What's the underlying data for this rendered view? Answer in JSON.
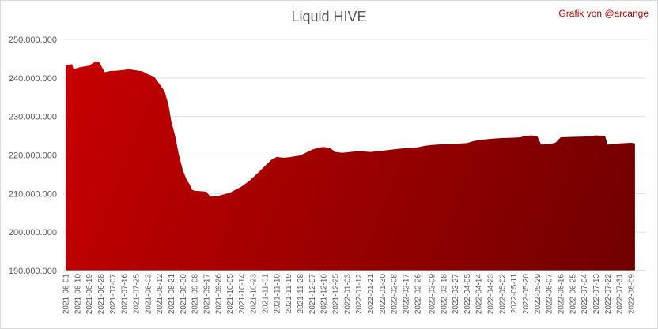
{
  "chart_data": {
    "type": "area",
    "title": "Liquid HIVE",
    "credit": "Grafik von @arcange",
    "xlabel": "",
    "ylabel": "",
    "ylim": [
      190000000,
      250000000
    ],
    "yticks": [
      {
        "value": 190000000,
        "label": "190.000.000"
      },
      {
        "value": 200000000,
        "label": "200.000.000"
      },
      {
        "value": 210000000,
        "label": "210.000.000"
      },
      {
        "value": 220000000,
        "label": "220.000.000"
      },
      {
        "value": 230000000,
        "label": "230.000.000"
      },
      {
        "value": 240000000,
        "label": "240.000.000"
      },
      {
        "value": 250000000,
        "label": "250.000.000"
      }
    ],
    "xtick_labels": [
      "2021-06-01",
      "2021-06-10",
      "2021-06-19",
      "2021-06-28",
      "2021-07-07",
      "2021-07-16",
      "2021-07-25",
      "2021-08-03",
      "2021-08-12",
      "2021-08-21",
      "2021-08-30",
      "2021-09-08",
      "2021-09-17",
      "2021-09-26",
      "2021-10-05",
      "2021-10-14",
      "2021-10-23",
      "2021-11-01",
      "2021-11-10",
      "2021-11-19",
      "2021-11-28",
      "2021-12-07",
      "2021-12-16",
      "2021-12-25",
      "2022-01-03",
      "2022-01-12",
      "2022-01-21",
      "2022-01-30",
      "2022-02-08",
      "2022-02-17",
      "2022-02-26",
      "2022-03-09",
      "2022-03-18",
      "2022-03-27",
      "2022-04-05",
      "2022-04-14",
      "2022-04-23",
      "2022-05-02",
      "2022-05-11",
      "2022-05-20",
      "2022-05-29",
      "2022-06-07",
      "2022-06-16",
      "2022-06-25",
      "2022-07-04",
      "2022-07-13",
      "2022-07-22",
      "2022-07-31",
      "2022-08-09"
    ],
    "series": [
      {
        "color": "#c00000",
        "x": [
          "2021-06-01",
          "2021-06-06",
          "2021-06-07",
          "2021-06-12",
          "2021-06-19",
          "2021-06-24",
          "2021-06-27",
          "2021-07-01",
          "2021-07-05",
          "2021-07-10",
          "2021-07-16",
          "2021-07-19",
          "2021-07-25",
          "2021-07-30",
          "2021-08-03",
          "2021-08-08",
          "2021-08-12",
          "2021-08-16",
          "2021-08-19",
          "2021-08-21",
          "2021-08-24",
          "2021-08-27",
          "2021-08-30",
          "2021-09-02",
          "2021-09-04",
          "2021-09-06",
          "2021-09-08",
          "2021-09-13",
          "2021-09-17",
          "2021-09-20",
          "2021-09-26",
          "2021-10-05",
          "2021-10-14",
          "2021-10-20",
          "2021-10-27",
          "2021-11-01",
          "2021-11-06",
          "2021-11-10",
          "2021-11-15",
          "2021-11-19",
          "2021-11-28",
          "2021-12-03",
          "2021-12-07",
          "2021-12-12",
          "2021-12-16",
          "2021-12-21",
          "2021-12-25",
          "2021-12-30",
          "2022-01-03",
          "2022-01-08",
          "2022-01-12",
          "2022-01-21",
          "2022-01-30",
          "2022-02-08",
          "2022-02-17",
          "2022-02-26",
          "2022-03-04",
          "2022-03-09",
          "2022-03-18",
          "2022-03-27",
          "2022-04-05",
          "2022-04-10",
          "2022-04-14",
          "2022-04-23",
          "2022-05-02",
          "2022-05-11",
          "2022-05-16",
          "2022-05-20",
          "2022-05-25",
          "2022-05-29",
          "2022-06-01",
          "2022-06-07",
          "2022-06-12",
          "2022-06-16",
          "2022-06-25",
          "2022-07-04",
          "2022-07-13",
          "2022-07-20",
          "2022-07-22",
          "2022-07-27",
          "2022-07-31",
          "2022-08-05",
          "2022-08-09",
          "2022-08-12"
        ],
        "values": [
          243200000,
          243600000,
          242300000,
          242800000,
          243200000,
          244300000,
          244000000,
          241500000,
          241800000,
          241900000,
          242100000,
          242300000,
          242000000,
          241700000,
          241000000,
          240300000,
          238500000,
          236500000,
          233000000,
          229000000,
          225000000,
          220000000,
          216000000,
          213500000,
          212500000,
          211000000,
          210700000,
          210600000,
          210500000,
          209200000,
          209400000,
          210200000,
          211800000,
          213300000,
          215500000,
          217200000,
          218800000,
          219500000,
          219300000,
          219400000,
          219900000,
          220700000,
          221400000,
          221900000,
          222100000,
          221800000,
          220800000,
          220600000,
          220700000,
          220900000,
          221000000,
          220800000,
          221100000,
          221500000,
          221800000,
          222000000,
          222400000,
          222600000,
          222800000,
          222900000,
          223100000,
          223600000,
          223900000,
          224200000,
          224400000,
          224500000,
          224600000,
          225000000,
          225100000,
          224900000,
          222700000,
          222800000,
          223200000,
          224600000,
          224700000,
          224800000,
          225100000,
          225000000,
          222700000,
          222800000,
          223000000,
          223100000,
          223200000,
          223000000
        ]
      }
    ],
    "legend": "none",
    "grid": "horizontal"
  }
}
